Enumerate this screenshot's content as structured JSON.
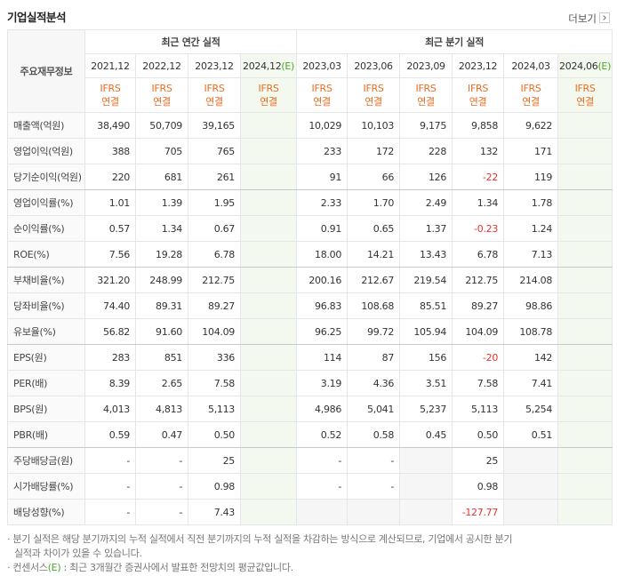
{
  "header": {
    "title": "기업실적분석",
    "more": "더보기"
  },
  "table": {
    "corner": "주요재무정보",
    "groups": [
      {
        "label": "최근 연간 실적",
        "span": 4
      },
      {
        "label": "최근 분기 실적",
        "span": 6
      }
    ],
    "periods": [
      {
        "date": "2021,12",
        "standard": "IFRS",
        "scope": "연결"
      },
      {
        "date": "2022,12",
        "standard": "IFRS",
        "scope": "연결"
      },
      {
        "date": "2023,12",
        "standard": "IFRS",
        "scope": "연결"
      },
      {
        "date": "2024,12",
        "mark": "(E)",
        "standard": "IFRS",
        "scope": "연결"
      },
      {
        "date": "2023,03",
        "standard": "IFRS",
        "scope": "연결"
      },
      {
        "date": "2023,06",
        "standard": "IFRS",
        "scope": "연결"
      },
      {
        "date": "2023,09",
        "standard": "IFRS",
        "scope": "연결"
      },
      {
        "date": "2023,12",
        "standard": "IFRS",
        "scope": "연결"
      },
      {
        "date": "2024,03",
        "standard": "IFRS",
        "scope": "연결"
      },
      {
        "date": "2024,06",
        "mark": "(E)",
        "standard": "IFRS",
        "scope": "연결"
      }
    ],
    "rows": [
      {
        "label": "매출액(억원)",
        "values": [
          "38,490",
          "50,709",
          "39,165",
          null,
          "10,029",
          "10,103",
          "9,175",
          "9,858",
          "9,622",
          null
        ]
      },
      {
        "label": "영업이익(억원)",
        "values": [
          "388",
          "705",
          "765",
          null,
          "233",
          "172",
          "228",
          "132",
          "171",
          null
        ]
      },
      {
        "label": "당기순이익(억원)",
        "values": [
          "220",
          "681",
          "261",
          null,
          "91",
          "66",
          "126",
          "-22",
          "119",
          null
        ]
      },
      {
        "label": "영업이익률(%)",
        "values": [
          "1.01",
          "1.39",
          "1.95",
          null,
          "2.33",
          "1.70",
          "2.49",
          "1.34",
          "1.78",
          null
        ]
      },
      {
        "label": "순이익률(%)",
        "values": [
          "0.57",
          "1.34",
          "0.67",
          null,
          "0.91",
          "0.65",
          "1.37",
          "-0.23",
          "1.24",
          null
        ]
      },
      {
        "label": "ROE(%)",
        "values": [
          "7.56",
          "19.28",
          "6.78",
          null,
          "18.00",
          "14.21",
          "13.43",
          "6.78",
          "7.13",
          null
        ]
      },
      {
        "label": "부채비율(%)",
        "values": [
          "321.20",
          "248.99",
          "212.75",
          null,
          "200.16",
          "212.67",
          "219.54",
          "212.75",
          "214.08",
          null
        ]
      },
      {
        "label": "당좌비율(%)",
        "values": [
          "74.40",
          "89.31",
          "89.27",
          null,
          "96.83",
          "108.68",
          "85.51",
          "89.27",
          "98.86",
          null
        ]
      },
      {
        "label": "유보율(%)",
        "values": [
          "56.82",
          "91.60",
          "104.09",
          null,
          "96.25",
          "99.72",
          "105.94",
          "104.09",
          "108.78",
          null
        ]
      },
      {
        "label": "EPS(원)",
        "values": [
          "283",
          "851",
          "336",
          null,
          "114",
          "87",
          "156",
          "-20",
          "142",
          null
        ]
      },
      {
        "label": "PER(배)",
        "values": [
          "8.39",
          "2.65",
          "7.58",
          null,
          "3.19",
          "4.36",
          "3.51",
          "7.58",
          "7.41",
          null
        ]
      },
      {
        "label": "BPS(원)",
        "values": [
          "4,013",
          "4,813",
          "5,113",
          null,
          "4,986",
          "5,041",
          "5,237",
          "5,113",
          "5,254",
          null
        ]
      },
      {
        "label": "PBR(배)",
        "values": [
          "0.59",
          "0.47",
          "0.50",
          null,
          "0.52",
          "0.58",
          "0.45",
          "0.50",
          "0.51",
          null
        ]
      },
      {
        "label": "주당배당금(원)",
        "values": [
          "-",
          "-",
          "25",
          null,
          "-",
          "-",
          null,
          "25",
          null,
          null
        ]
      },
      {
        "label": "시가배당률(%)",
        "values": [
          "-",
          "-",
          "0.98",
          null,
          "-",
          "-",
          null,
          "0.98",
          null,
          null
        ]
      },
      {
        "label": "배당성향(%)",
        "values": [
          "-",
          "-",
          "7.43",
          null,
          null,
          null,
          null,
          "-127.77",
          null,
          null
        ]
      }
    ]
  },
  "notes": [
    {
      "text": "분기 실적은 해당 분기까지의 누적 실적에서 직전 분기까지의 누적 실적을 차감하는 방식으로 계산되므로, 기업에서 공시한 분기 실적과 차이가 있을 수 있습니다."
    },
    {
      "before": "컨센서스",
      "mark": "(E)",
      "after": " : 최근 3개월간 증권사에서 발표한 전망치의 평균값입니다."
    }
  ]
}
